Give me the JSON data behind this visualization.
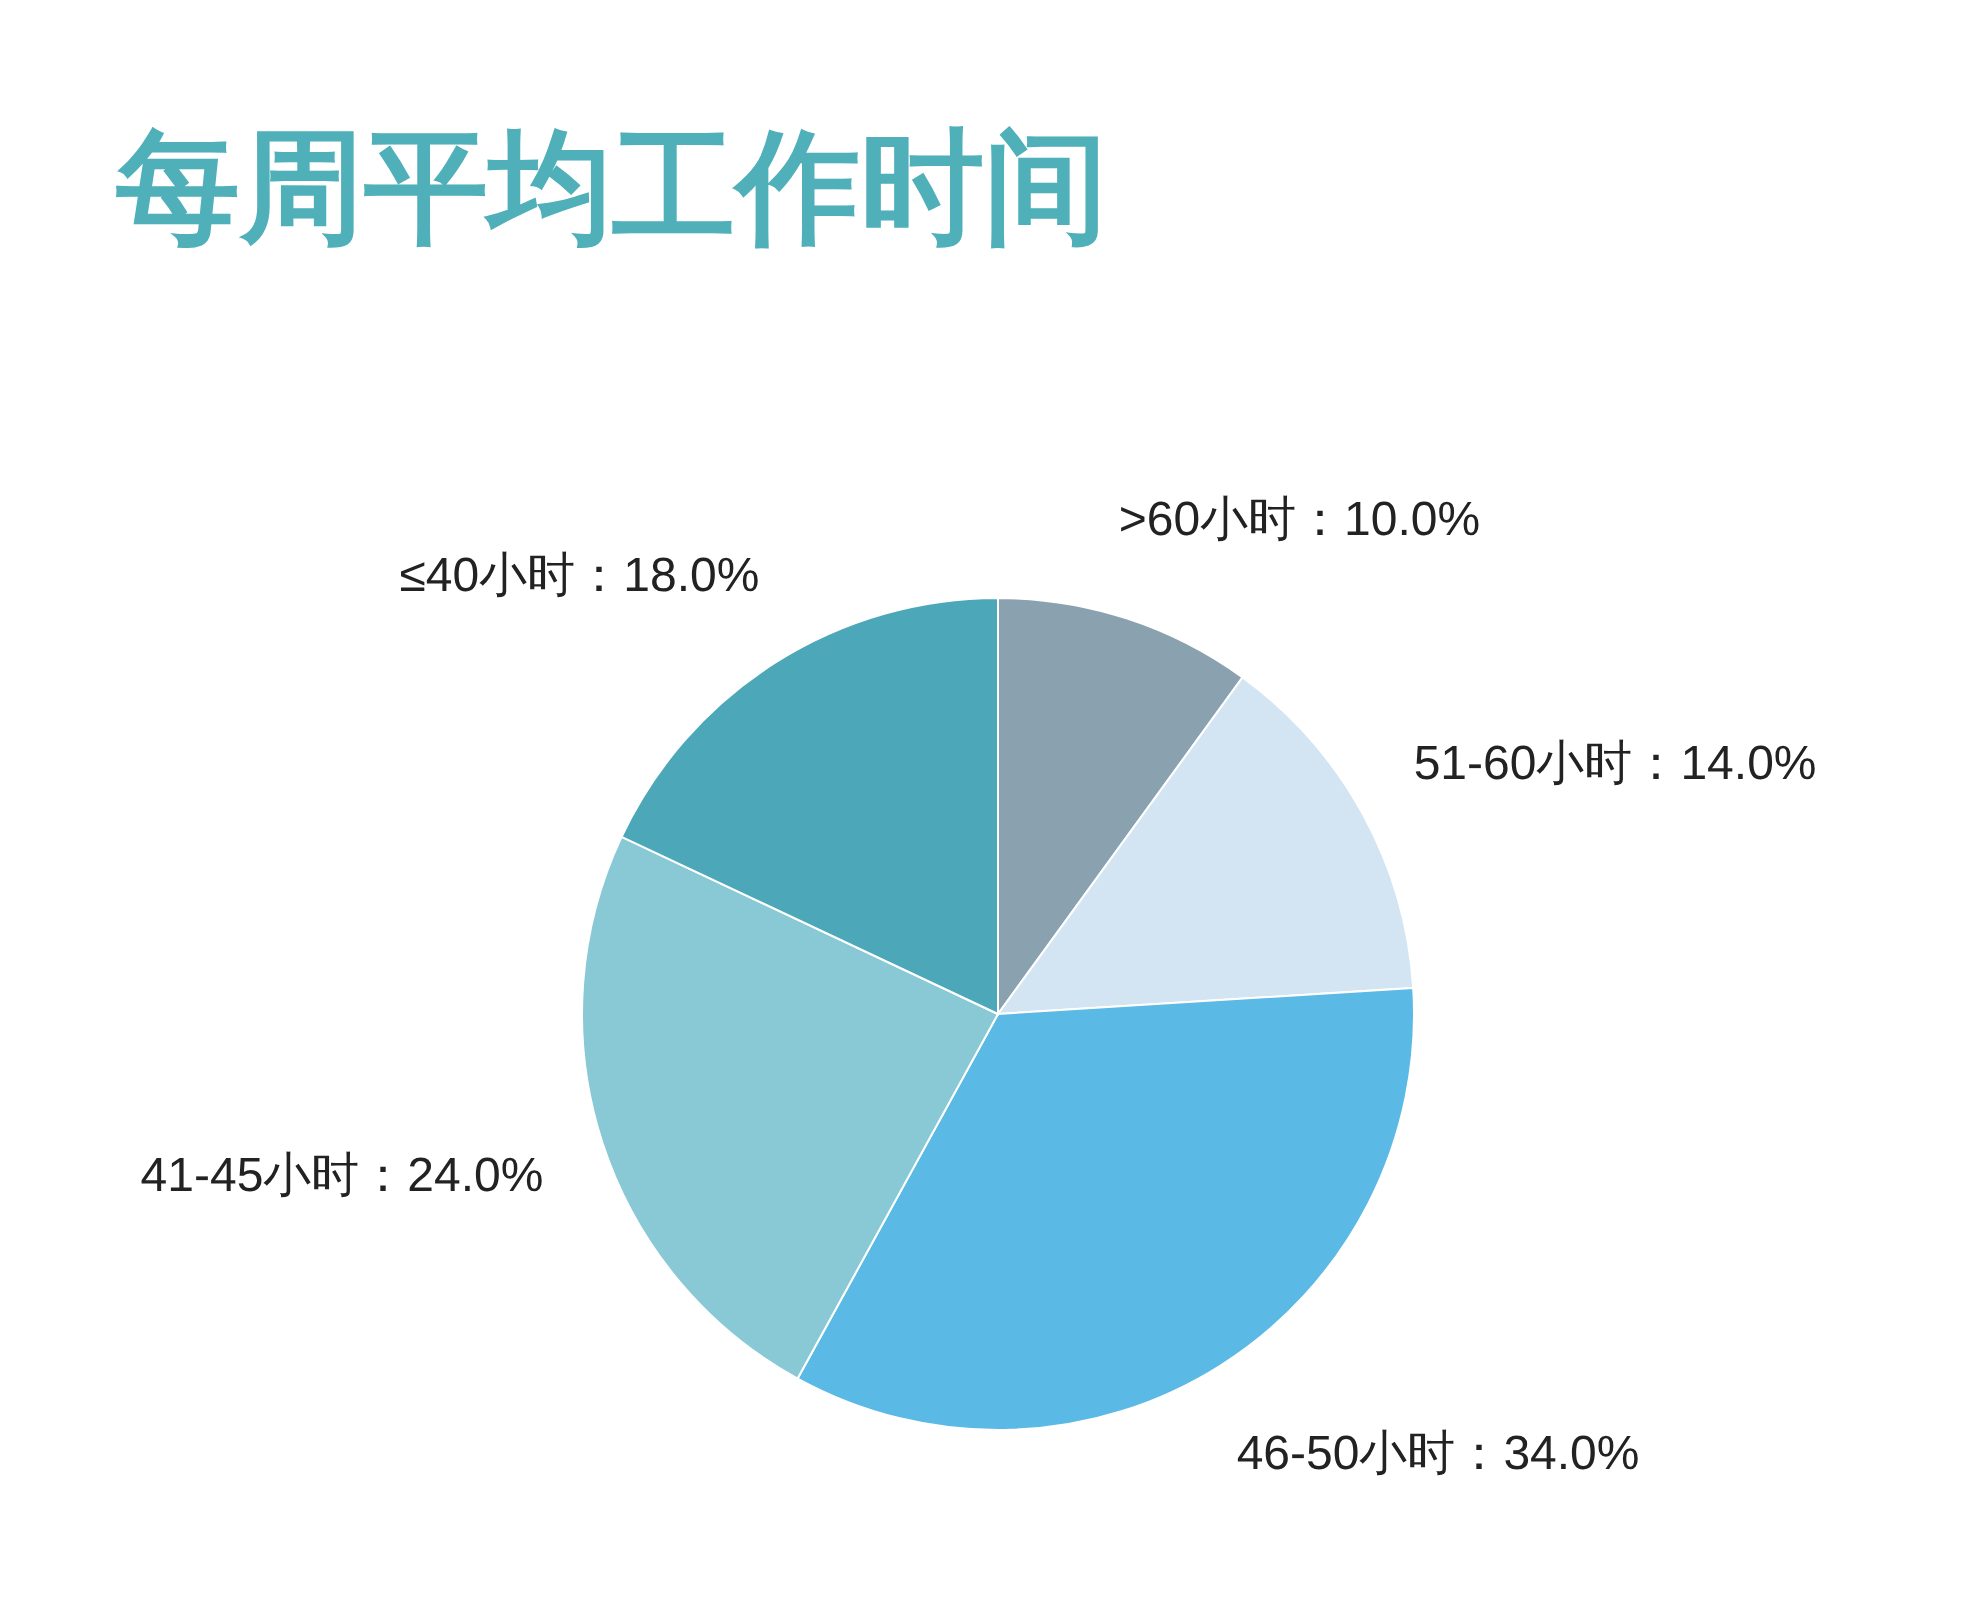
{
  "chart_data": {
    "type": "pie",
    "title": "每周平均工作时间",
    "categories": [
      ">60小时",
      "51-60小时",
      "46-50小时",
      "41-45小时",
      "≤40小时"
    ],
    "values": [
      10.0,
      14.0,
      34.0,
      24.0,
      18.0
    ],
    "value_labels": [
      "10.0%",
      "14.0%",
      "34.0%",
      "24.0%",
      "18.0%"
    ],
    "colors": [
      "#8aa2b0",
      "#d3e5f3",
      "#5bb9e5",
      "#89c8d5",
      "#4ca8b9"
    ]
  }
}
